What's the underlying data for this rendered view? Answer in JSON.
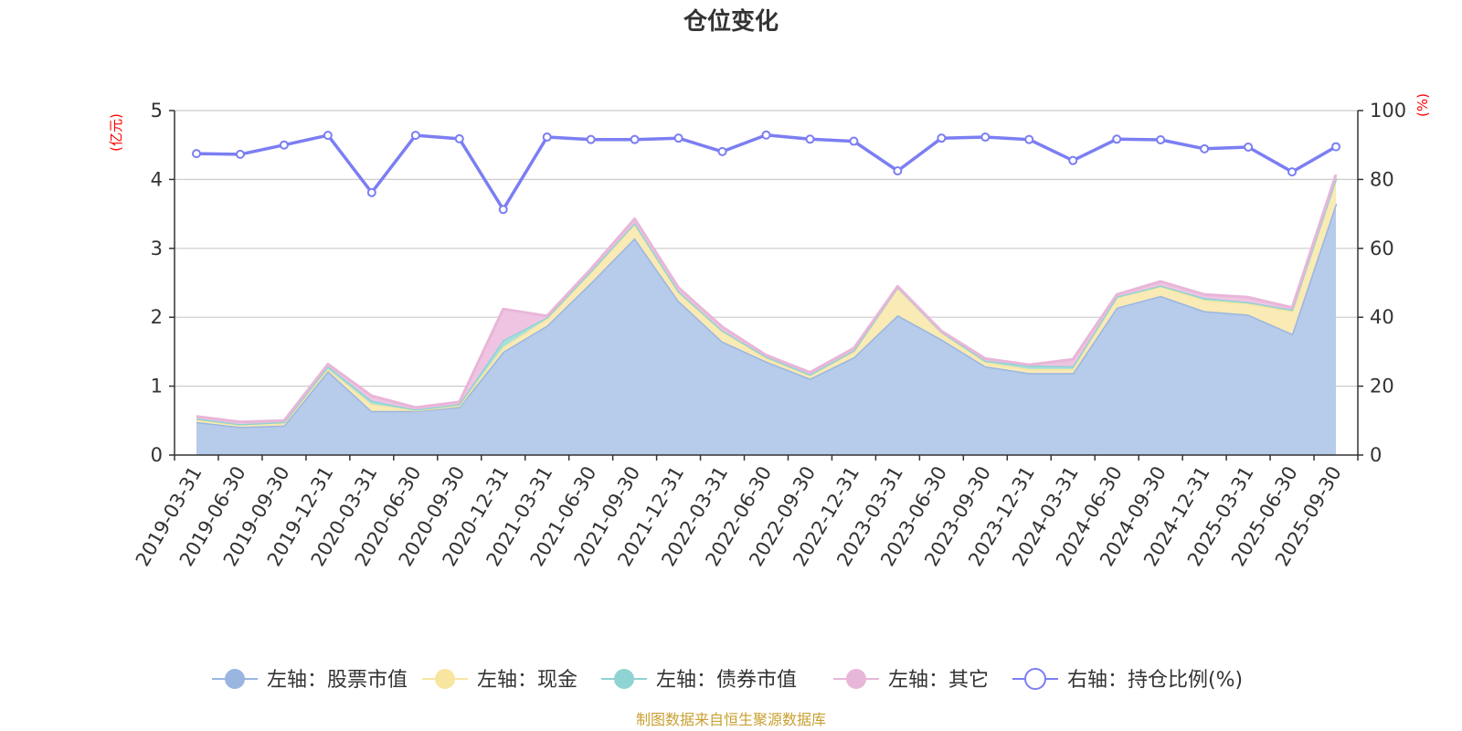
{
  "chart_data": {
    "type": "area",
    "title": "仓位变化",
    "source": "制图数据来自恒生聚源数据库",
    "left_axis": {
      "unit": "(亿元)",
      "ylim": [
        0,
        5
      ],
      "ticks": [
        "0",
        "1",
        "2",
        "3",
        "4",
        "5"
      ]
    },
    "right_axis": {
      "unit": "(%)",
      "ylim": [
        0,
        100
      ],
      "ticks": [
        "0",
        "20",
        "40",
        "60",
        "80",
        "100"
      ]
    },
    "categories": [
      "2019-03-31",
      "2019-06-30",
      "2019-09-30",
      "2019-12-31",
      "2020-03-31",
      "2020-06-30",
      "2020-09-30",
      "2020-12-31",
      "2021-03-31",
      "2021-06-30",
      "2021-09-30",
      "2021-12-31",
      "2022-03-31",
      "2022-06-30",
      "2022-09-30",
      "2022-12-31",
      "2023-03-31",
      "2023-06-30",
      "2023-09-30",
      "2023-12-31",
      "2024-03-31",
      "2024-06-30",
      "2024-09-30",
      "2024-12-31",
      "2025-03-31",
      "2025-06-30",
      "2025-09-30"
    ],
    "series": [
      {
        "name": "左轴：股票市值",
        "axis": "left",
        "stack": true,
        "color": "#9ab6e0",
        "fill": "#b7cbea",
        "values": [
          0.48,
          0.41,
          0.43,
          1.22,
          0.64,
          0.64,
          0.7,
          1.5,
          1.88,
          2.5,
          3.15,
          2.24,
          1.65,
          1.36,
          1.11,
          1.42,
          2.03,
          1.68,
          1.29,
          1.19,
          1.19,
          2.14,
          2.31,
          2.09,
          2.04,
          1.76,
          3.65
        ]
      },
      {
        "name": "左轴：现金",
        "axis": "left",
        "stack": true,
        "color": "#f8e6a0",
        "fill": "#f9eab6",
        "values": [
          0.04,
          0.03,
          0.04,
          0.03,
          0.1,
          0.01,
          0.02,
          0.07,
          0.1,
          0.15,
          0.2,
          0.12,
          0.14,
          0.05,
          0.05,
          0.08,
          0.4,
          0.1,
          0.06,
          0.06,
          0.06,
          0.15,
          0.14,
          0.16,
          0.16,
          0.33,
          0.35
        ]
      },
      {
        "name": "左轴：债券市值",
        "axis": "left",
        "stack": true,
        "color": "#8fd3d3",
        "fill": "#a8dedd",
        "values": [
          0.01,
          0.01,
          0.01,
          0.04,
          0.05,
          0.01,
          0.02,
          0.1,
          0.02,
          0.02,
          0.02,
          0.02,
          0.02,
          0.02,
          0.01,
          0.02,
          0.01,
          0.01,
          0.02,
          0.05,
          0.04,
          0.01,
          0.01,
          0.03,
          0.02,
          0.02,
          0.02
        ]
      },
      {
        "name": "左轴：其它",
        "axis": "left",
        "stack": true,
        "color": "#e8b6d8",
        "fill": "#efc4e2",
        "values": [
          0.03,
          0.03,
          0.02,
          0.03,
          0.07,
          0.03,
          0.03,
          0.45,
          0.02,
          0.03,
          0.06,
          0.05,
          0.05,
          0.02,
          0.03,
          0.03,
          0.01,
          0.01,
          0.03,
          0.01,
          0.1,
          0.03,
          0.06,
          0.05,
          0.07,
          0.03,
          0.05
        ]
      },
      {
        "name": "右轴：持仓比例(%)",
        "axis": "right",
        "stack": false,
        "color": "#7b7ef2",
        "fill": "",
        "values": [
          87.5,
          87.3,
          90.0,
          92.8,
          76.2,
          92.8,
          91.8,
          71.3,
          92.3,
          91.6,
          91.6,
          92.0,
          88.1,
          92.9,
          91.7,
          91.1,
          82.5,
          92.0,
          92.3,
          91.6,
          85.5,
          91.7,
          91.5,
          88.9,
          89.4,
          82.2,
          89.5
        ]
      }
    ]
  }
}
